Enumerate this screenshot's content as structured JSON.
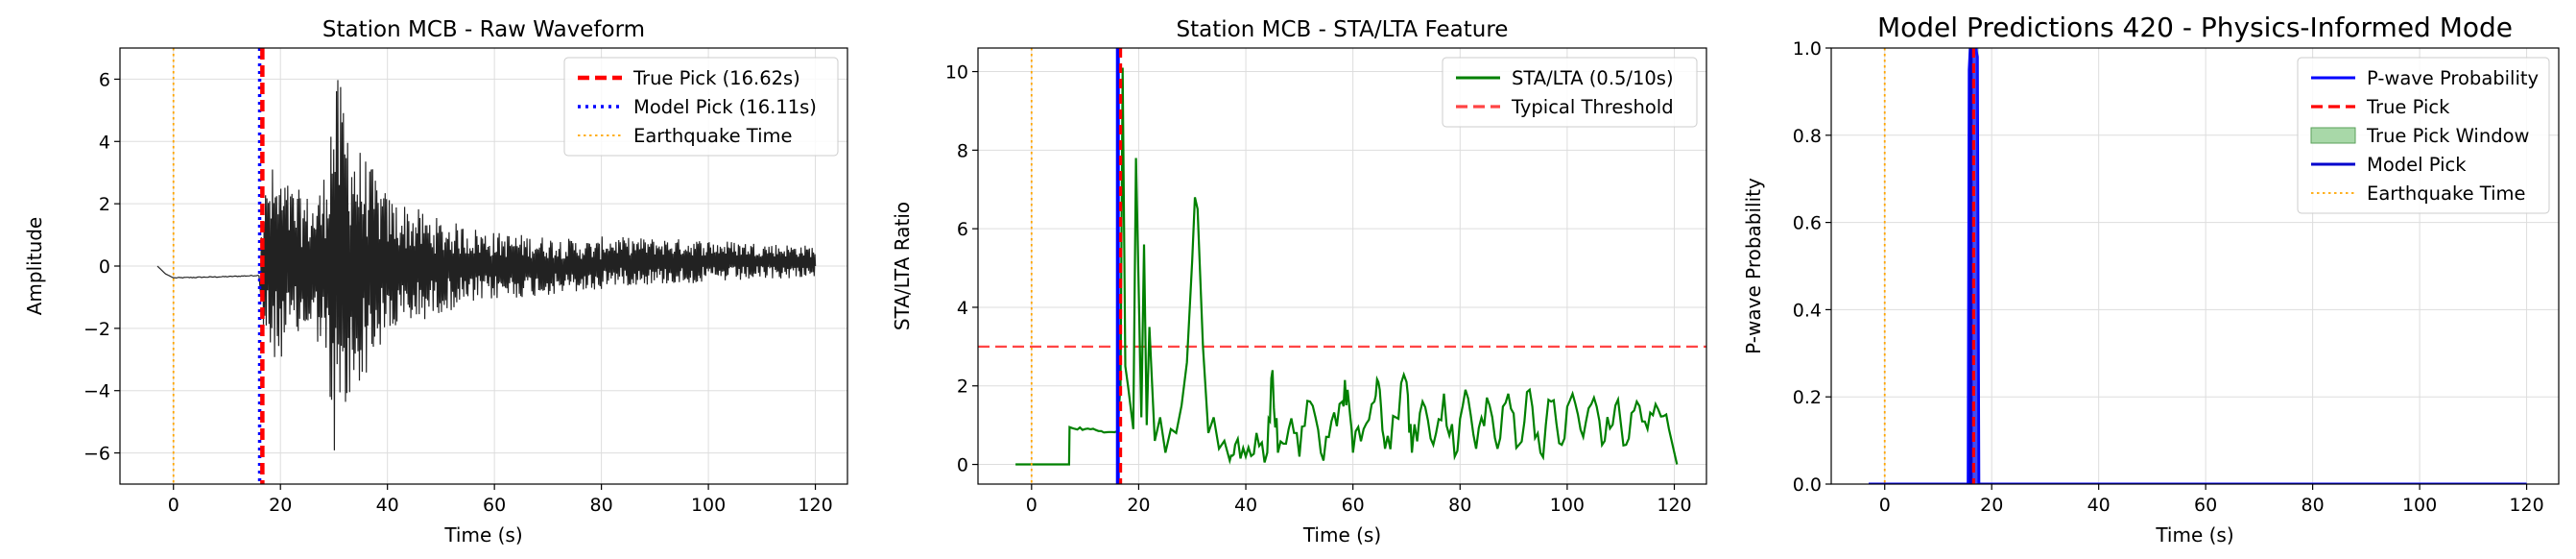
{
  "charts": [
    {
      "id": "waveform",
      "title": "Station MCB - Raw Waveform",
      "xlabel": "Time (s)",
      "ylabel": "Amplitude",
      "xlim": [
        -10,
        126
      ],
      "ylim": [
        -7,
        7
      ],
      "xticks": [
        0,
        20,
        40,
        60,
        80,
        100,
        120
      ],
      "yticks": [
        -6,
        -4,
        -2,
        0,
        2,
        4,
        6
      ],
      "grid": true,
      "legend": "top-right",
      "legend_entries": [
        {
          "label": "True Pick (16.62s)",
          "color": "#ff0000",
          "style": "dashed-thick"
        },
        {
          "label": "Model Pick (16.11s)",
          "color": "#0000ff",
          "style": "dotted"
        },
        {
          "label": "Earthquake Time",
          "color": "#ffa500",
          "style": "dotted-thin"
        }
      ]
    },
    {
      "id": "stalta",
      "title": "Station MCB - STA/LTA Feature",
      "xlabel": "Time (s)",
      "ylabel": "STA/LTA Ratio",
      "xlim": [
        -10,
        126
      ],
      "ylim": [
        -0.5,
        10.6
      ],
      "xticks": [
        0,
        20,
        40,
        60,
        80,
        100,
        120
      ],
      "yticks": [
        0,
        2,
        4,
        6,
        8,
        10
      ],
      "grid": true,
      "legend": "top-right",
      "legend_entries": [
        {
          "label": "STA/LTA (0.5/10s)",
          "color": "#008000",
          "style": "solid"
        },
        {
          "label": "Typical Threshold",
          "color": "#ff4444",
          "style": "dashed"
        }
      ]
    },
    {
      "id": "predictions",
      "title": "Model Predictions 420 - Physics-Informed Mode",
      "xlabel": "Time (s)",
      "ylabel": "P-wave Probability",
      "xlim": [
        -10,
        126
      ],
      "ylim": [
        0,
        1
      ],
      "xticks": [
        0,
        20,
        40,
        60,
        80,
        100,
        120
      ],
      "yticks": [
        "0.0",
        "0.2",
        "0.4",
        "0.6",
        "0.8",
        "1.0"
      ],
      "grid": true,
      "legend": "top-right",
      "legend_entries": [
        {
          "label": "P-wave Probability",
          "color": "#0000ff",
          "style": "solid"
        },
        {
          "label": "True Pick",
          "color": "#ff0000",
          "style": "dashed"
        },
        {
          "label": "True Pick Window",
          "color": "#a8d8a8",
          "style": "patch"
        },
        {
          "label": "Model Pick",
          "color": "#0000cc",
          "style": "solid"
        },
        {
          "label": "Earthquake Time",
          "color": "#ffa500",
          "style": "dotted-thin"
        }
      ]
    }
  ],
  "chart_data": [
    {
      "type": "line",
      "title": "Station MCB - Raw Waveform",
      "xlabel": "Time (s)",
      "ylabel": "Amplitude",
      "xlim": [
        -10,
        126
      ],
      "ylim": [
        -7,
        7
      ],
      "series": [
        {
          "name": "Waveform",
          "color": "#222222",
          "description_points": {
            "pre_event": [
              [
                -3,
                0.0
              ],
              [
                -1.5,
                -0.25
              ],
              [
                0,
                -0.38
              ],
              [
                5,
                -0.36
              ],
              [
                10,
                -0.34
              ],
              [
                16,
                -0.3
              ]
            ],
            "envelope": [
              [
                16.6,
                2.0
              ],
              [
                18,
                3.3
              ],
              [
                22,
                2.6
              ],
              [
                26,
                2.2
              ],
              [
                28,
                2.8
              ],
              [
                30,
                6.3
              ],
              [
                32,
                5.6
              ],
              [
                34,
                4.1
              ],
              [
                36,
                3.5
              ],
              [
                40,
                2.3
              ],
              [
                50,
                1.5
              ],
              [
                60,
                1.1
              ],
              [
                80,
                0.8
              ],
              [
                100,
                0.7
              ],
              [
                120,
                0.5
              ]
            ],
            "end": [
              120,
              0.0
            ]
          }
        }
      ],
      "vlines": [
        {
          "name": "True Pick (16.62s)",
          "x": 16.62,
          "color": "#ff0000"
        },
        {
          "name": "Model Pick (16.11s)",
          "x": 16.11,
          "color": "#0000ff"
        },
        {
          "name": "Earthquake Time",
          "x": 0,
          "color": "#ffa500"
        }
      ]
    },
    {
      "type": "line",
      "title": "Station MCB - STA/LTA Feature",
      "xlabel": "Time (s)",
      "ylabel": "STA/LTA Ratio",
      "xlim": [
        -10,
        126
      ],
      "ylim": [
        -0.5,
        10.6
      ],
      "series": [
        {
          "name": "STA/LTA (0.5/10s)",
          "color": "#008000",
          "points": [
            [
              -3,
              0
            ],
            [
              7,
              0
            ],
            [
              7.1,
              0.95
            ],
            [
              10,
              0.9
            ],
            [
              13,
              0.85
            ],
            [
              16,
              0.85
            ],
            [
              16.6,
              2.0
            ],
            [
              17,
              10.1
            ],
            [
              17.5,
              2.5
            ],
            [
              18,
              2.0
            ],
            [
              19,
              0.9
            ],
            [
              19.5,
              7.8
            ],
            [
              20.5,
              1.2
            ],
            [
              21,
              5.6
            ],
            [
              21.5,
              1.0
            ],
            [
              22,
              3.5
            ],
            [
              23,
              0.6
            ],
            [
              24,
              1.2
            ],
            [
              25,
              0.3
            ],
            [
              26,
              0.9
            ],
            [
              27,
              0.8
            ],
            [
              28,
              1.5
            ],
            [
              29,
              2.6
            ],
            [
              30,
              5.2
            ],
            [
              30.5,
              6.8
            ],
            [
              31,
              6.5
            ],
            [
              32,
              3.0
            ],
            [
              33,
              0.8
            ],
            [
              34,
              1.2
            ],
            [
              35,
              0.4
            ],
            [
              36,
              0.6
            ],
            [
              37,
              0.1
            ],
            [
              38,
              0.5
            ],
            [
              40,
              0.2
            ],
            [
              42,
              0.8
            ],
            [
              44,
              0.3
            ],
            [
              45,
              2.4
            ],
            [
              46,
              0.3
            ],
            [
              48,
              0.9
            ],
            [
              50,
              0.2
            ],
            [
              52,
              1.6
            ],
            [
              54,
              0.3
            ],
            [
              56,
              1.1
            ],
            [
              58,
              1.6
            ],
            [
              59,
              1.9
            ],
            [
              60,
              0.3
            ],
            [
              62,
              0.9
            ],
            [
              64,
              1.6
            ],
            [
              65,
              1.9
            ],
            [
              66,
              0.4
            ],
            [
              68,
              1.2
            ],
            [
              70,
              2.1
            ],
            [
              71,
              0.3
            ],
            [
              73,
              1.6
            ],
            [
              75,
              0.5
            ],
            [
              77,
              1.8
            ],
            [
              79,
              0.2
            ],
            [
              81,
              1.9
            ],
            [
              83,
              0.4
            ],
            [
              85,
              1.7
            ],
            [
              87,
              0.4
            ],
            [
              89,
              1.8
            ],
            [
              91,
              0.5
            ],
            [
              93,
              1.9
            ],
            [
              95,
              0.3
            ],
            [
              97,
              1.6
            ],
            [
              99,
              0.5
            ],
            [
              101,
              1.8
            ],
            [
              103,
              0.7
            ],
            [
              105,
              1.7
            ],
            [
              107,
              0.6
            ],
            [
              109,
              1.5
            ],
            [
              111,
              0.5
            ],
            [
              113,
              1.6
            ],
            [
              115,
              0.9
            ],
            [
              117,
              1.4
            ],
            [
              119,
              0.9
            ],
            [
              120,
              0.3
            ],
            [
              120.5,
              0.0
            ]
          ]
        }
      ],
      "hlines": [
        {
          "name": "Typical Threshold",
          "y": 3.0,
          "color": "#ff4444"
        }
      ],
      "vlines": [
        {
          "name": "True Pick",
          "x": 16.62,
          "color": "#ff0000"
        },
        {
          "name": "Model Pick",
          "x": 16.11,
          "color": "#0000ff"
        },
        {
          "name": "Earthquake Time",
          "x": 0,
          "color": "#ffa500"
        }
      ]
    },
    {
      "type": "line",
      "title": "Model Predictions 420 - Physics-Informed Mode",
      "xlabel": "Time (s)",
      "ylabel": "P-wave Probability",
      "xlim": [
        -10,
        126
      ],
      "ylim": [
        0,
        1
      ],
      "series": [
        {
          "name": "P-wave Probability",
          "color": "#0000ff",
          "points": [
            [
              -3,
              0
            ],
            [
              15.6,
              0
            ],
            [
              15.8,
              0.95
            ],
            [
              16.0,
              1.0
            ],
            [
              16.3,
              1.0
            ],
            [
              16.6,
              1.0
            ],
            [
              17.0,
              1.0
            ],
            [
              17.3,
              0.98
            ],
            [
              17.6,
              0
            ],
            [
              120,
              0
            ]
          ]
        }
      ],
      "spans": [
        {
          "name": "True Pick Window",
          "x0": 15.7,
          "x1": 17.6,
          "color": "#a8d8a8"
        }
      ],
      "vlines": [
        {
          "name": "True Pick",
          "x": 16.62,
          "color": "#ff0000"
        },
        {
          "name": "Model Pick",
          "x": 16.11,
          "color": "#0000cc"
        },
        {
          "name": "Earthquake Time",
          "x": 0,
          "color": "#ffa500"
        }
      ]
    }
  ]
}
